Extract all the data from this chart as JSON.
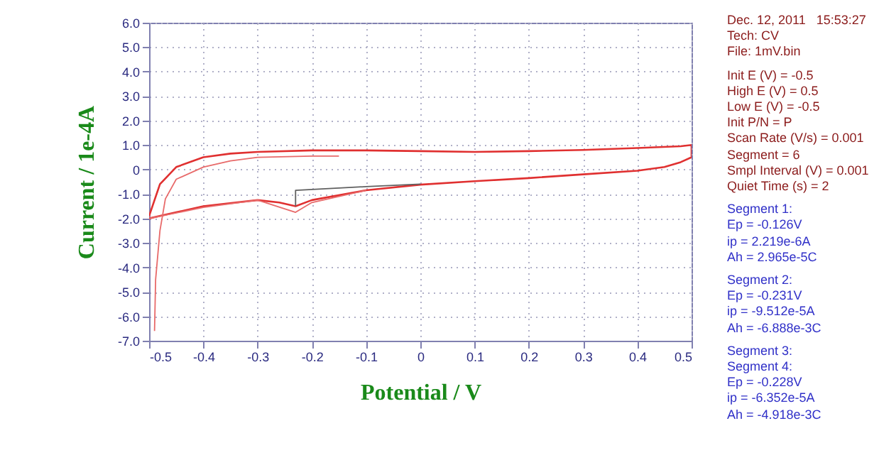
{
  "chart_data": {
    "type": "line",
    "xlabel": "Potential / V",
    "ylabel": "Current / 1e-4A",
    "xlim": [
      -0.5,
      0.5
    ],
    "xticks": [
      -0.5,
      -0.4,
      -0.3,
      -0.2,
      -0.1,
      0,
      0.1,
      0.2,
      0.3,
      0.4,
      0.5
    ],
    "ylim": [
      -7,
      6
    ],
    "yticks": [
      {
        "value": 6,
        "label": "6.0"
      },
      {
        "value": 5,
        "label": "5.0"
      },
      {
        "value": 4,
        "label": "4.0"
      },
      {
        "value": 3,
        "label": "3.0"
      },
      {
        "value": 2,
        "label": "2.0"
      },
      {
        "value": 1,
        "label": "1.0"
      },
      0,
      {
        "value": -1,
        "label": "-1.0"
      },
      {
        "value": -2,
        "label": "-2.0"
      },
      {
        "value": -3,
        "label": "-3.0"
      },
      {
        "value": -4,
        "label": "-4.0"
      },
      {
        "value": -5,
        "label": "-5.0"
      },
      {
        "value": -6,
        "label": "-6.0"
      },
      {
        "value": -7,
        "label": "-7.0"
      }
    ],
    "grid": true,
    "line_style": "solid",
    "series": [
      {
        "color": "#e03030",
        "x": [
          -0.5,
          -0.48,
          -0.45,
          -0.4,
          -0.35,
          -0.3,
          -0.2,
          -0.1,
          0,
          0.1,
          0.2,
          0.3,
          0.4,
          0.48,
          0.5,
          0.5,
          0.48,
          0.45,
          0.4,
          0.3,
          0.2,
          0.1,
          0,
          -0.1,
          -0.2,
          -0.23,
          -0.26,
          -0.3,
          -0.4,
          -0.45,
          -0.5
        ],
        "values": [
          -1.9,
          -0.6,
          0.1,
          0.5,
          0.65,
          0.72,
          0.78,
          0.78,
          0.75,
          0.72,
          0.75,
          0.8,
          0.88,
          0.95,
          1.0,
          0.5,
          0.3,
          0.1,
          -0.05,
          -0.2,
          -0.35,
          -0.48,
          -0.62,
          -0.85,
          -1.25,
          -1.5,
          -1.35,
          -1.25,
          -1.5,
          -1.75,
          -2.0
        ]
      },
      {
        "color": "#e86a6a",
        "x": [
          -0.49,
          -0.488,
          -0.48,
          -0.47,
          -0.45,
          -0.4,
          -0.35,
          -0.3,
          -0.2,
          -0.15
        ],
        "values": [
          -6.6,
          -4.5,
          -2.5,
          -1.2,
          -0.4,
          0.1,
          0.35,
          0.5,
          0.55,
          0.55
        ]
      },
      {
        "color": "#e86a6a",
        "x": [
          -0.5,
          -0.4,
          -0.3,
          -0.23,
          -0.2,
          -0.1
        ],
        "values": [
          -2.0,
          -1.55,
          -1.25,
          -1.75,
          -1.35,
          -0.85
        ]
      },
      {
        "color": "#606060",
        "x": [
          -0.23,
          -0.23,
          -0.1,
          0
        ],
        "values": [
          -1.5,
          -0.85,
          -0.7,
          -0.6
        ]
      }
    ],
    "annotations": [
      "Dec. 12, 2011   15:53:27",
      "Tech: CV",
      "File: 1mV.bin",
      "Init E (V) = -0.5",
      "High E (V) = 0.5",
      "Low E (V) = -0.5",
      "Init P/N = P",
      "Scan Rate (V/s) = 0.001",
      "Segment = 6",
      "Smpl Interval (V) = 0.001",
      "Quiet Time (s) = 2",
      "Segment 1:",
      "Ep = -0.126V",
      "ip = 2.219e-6A",
      "Ah = 2.965e-5C",
      "Segment 2:",
      "Ep = -0.231V",
      "ip = -9.512e-5A",
      "Ah = -6.888e-3C",
      "Segment 3:",
      "Segment 4:",
      "Ep = -0.228V",
      "ip = -6.352e-5A",
      "Ah = -4.918e-3C"
    ]
  }
}
